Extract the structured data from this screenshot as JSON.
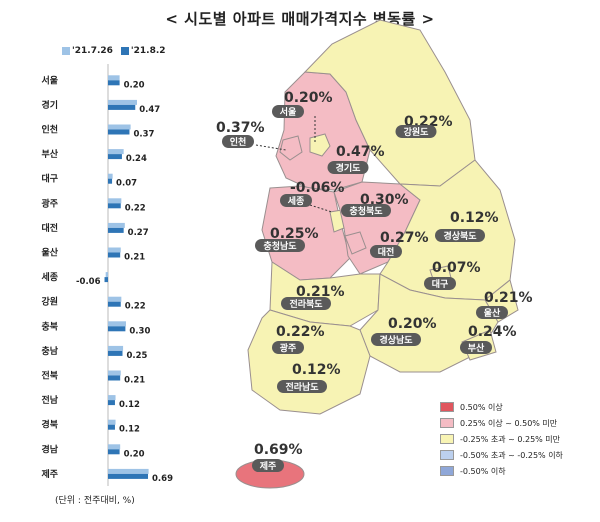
{
  "title": "< 시도별 아파트 매매가격지수 변동률 >",
  "unit_note": "(단위 : 전주대비, %)",
  "chart_data": {
    "type": "bar",
    "orientation": "horizontal",
    "categories": [
      "서울",
      "경기",
      "인천",
      "부산",
      "대구",
      "광주",
      "대전",
      "울산",
      "세종",
      "강원",
      "충북",
      "충남",
      "전북",
      "전남",
      "경북",
      "경남",
      "제주"
    ],
    "series": [
      {
        "name": "'21.7.26",
        "values": [
          0.2,
          0.5,
          0.39,
          0.27,
          0.08,
          0.23,
          0.29,
          0.22,
          -0.04,
          0.23,
          0.31,
          0.26,
          0.22,
          0.13,
          0.13,
          0.21,
          0.7
        ]
      },
      {
        "name": "'21.8.2",
        "values": [
          0.2,
          0.47,
          0.37,
          0.24,
          0.07,
          0.22,
          0.27,
          0.21,
          -0.06,
          0.22,
          0.3,
          0.25,
          0.21,
          0.12,
          0.12,
          0.2,
          0.69
        ]
      }
    ],
    "data_labels": [
      "0.20",
      "0.47",
      "0.37",
      "0.24",
      "0.07",
      "0.22",
      "0.27",
      "0.21",
      "-0.06",
      "0.22",
      "0.30",
      "0.25",
      "0.21",
      "0.12",
      "0.12",
      "0.20",
      "0.69"
    ],
    "colors": {
      "series1": "#9ec3e6",
      "series2": "#2e75b6"
    },
    "legend_position": "top-left"
  },
  "map": {
    "regions": [
      {
        "label": "서울",
        "value": "0.20%"
      },
      {
        "label": "인천",
        "value": "0.37%"
      },
      {
        "label": "경기도",
        "value": "0.47%"
      },
      {
        "label": "강원도",
        "value": "0.22%"
      },
      {
        "label": "세종",
        "value": "-0.06%"
      },
      {
        "label": "충청북도",
        "value": "0.30%"
      },
      {
        "label": "충청남도",
        "value": "0.25%"
      },
      {
        "label": "대전",
        "value": "0.27%"
      },
      {
        "label": "경상북도",
        "value": "0.12%"
      },
      {
        "label": "대구",
        "value": "0.07%"
      },
      {
        "label": "전라북도",
        "value": "0.21%"
      },
      {
        "label": "울산",
        "value": "0.21%"
      },
      {
        "label": "광주",
        "value": "0.22%"
      },
      {
        "label": "경상남도",
        "value": "0.20%"
      },
      {
        "label": "부산",
        "value": "0.24%"
      },
      {
        "label": "전라남도",
        "value": "0.12%"
      },
      {
        "label": "제주",
        "value": "0.69%"
      }
    ],
    "fill_colors": {
      "high": "#e8747c",
      "mid": "#f4bcc4",
      "low": "#f7f3b4",
      "neg": "#fcf5ad",
      "label_bg": "#5a5a5a"
    }
  },
  "map_legend": [
    {
      "label": "0.50% 이상",
      "color": "#e0565e"
    },
    {
      "label": "0.25% 이상 ~ 0.50% 미만",
      "color": "#f4bcc4"
    },
    {
      "label": "-0.25% 초과 ~ 0.25% 미만",
      "color": "#f8f4b4"
    },
    {
      "label": "-0.50% 초과 ~ -0.25% 이하",
      "color": "#bcd0ee"
    },
    {
      "label": "-0.50% 이하",
      "color": "#8fa7d8"
    }
  ]
}
